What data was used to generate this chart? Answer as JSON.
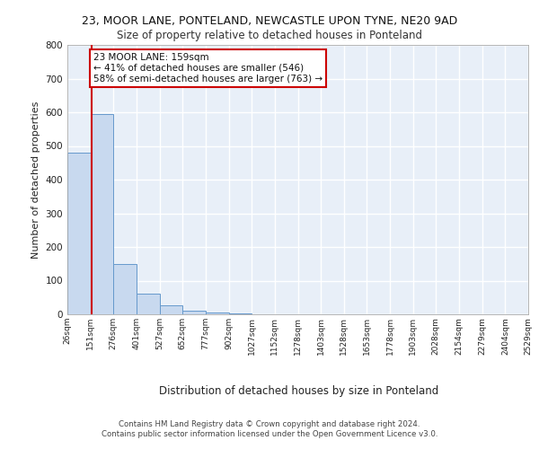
{
  "title": "23, MOOR LANE, PONTELAND, NEWCASTLE UPON TYNE, NE20 9AD",
  "subtitle": "Size of property relative to detached houses in Ponteland",
  "xlabel": "Distribution of detached houses by size in Ponteland",
  "ylabel": "Number of detached properties",
  "bin_edges": [
    26,
    151,
    276,
    401,
    527,
    652,
    777,
    902,
    1027,
    1152,
    1278,
    1403,
    1528,
    1653,
    1778,
    1903,
    2028,
    2154,
    2279,
    2404,
    2529
  ],
  "bar_heights": [
    480,
    595,
    150,
    62,
    27,
    10,
    5,
    2,
    1,
    1,
    0,
    1,
    0,
    0,
    0,
    0,
    0,
    0,
    0,
    0
  ],
  "bar_color": "#c8d9ef",
  "bar_edgecolor": "#6699cc",
  "red_line_x": 159,
  "annotation_text": "23 MOOR LANE: 159sqm\n← 41% of detached houses are smaller (546)\n58% of semi-detached houses are larger (763) →",
  "annotation_box_color": "#ffffff",
  "annotation_box_edgecolor": "#cc0000",
  "ylim": [
    0,
    800
  ],
  "yticks": [
    0,
    100,
    200,
    300,
    400,
    500,
    600,
    700,
    800
  ],
  "footer": "Contains HM Land Registry data © Crown copyright and database right 2024.\nContains public sector information licensed under the Open Government Licence v3.0.",
  "background_color": "#e8eff8",
  "grid_color": "#ffffff"
}
